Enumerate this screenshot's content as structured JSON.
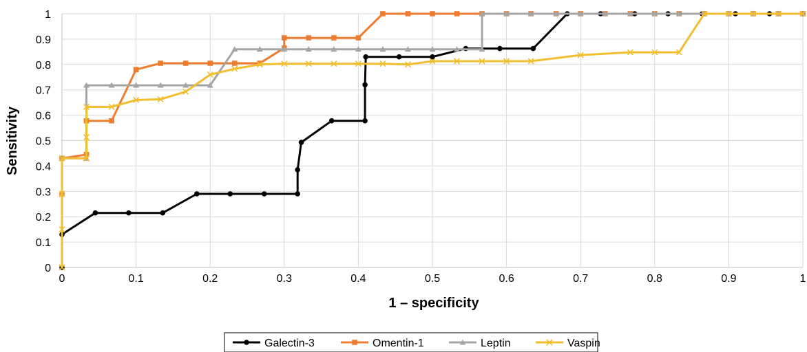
{
  "chart_data": {
    "type": "line",
    "title": "",
    "xlabel": "1 – specificity",
    "ylabel": "Sensitivity",
    "xlim": [
      0,
      1
    ],
    "ylim": [
      0,
      1
    ],
    "x_ticks": [
      "0",
      "0.1",
      "0.2",
      "0.3",
      "0.4",
      "0.5",
      "0.6",
      "0.7",
      "0.8",
      "0.9",
      "1"
    ],
    "y_ticks": [
      "0",
      "0.1",
      "0.2",
      "0.3",
      "0.4",
      "0.5",
      "0.6",
      "0.7",
      "0.8",
      "0.9",
      "1"
    ],
    "grid": true,
    "legend_position": "bottom",
    "series": [
      {
        "name": "Galectin-3",
        "color": "#000000",
        "marker": "circle",
        "points": [
          [
            0,
            0
          ],
          [
            0,
            0.13
          ],
          [
            0.045,
            0.215
          ],
          [
            0.09,
            0.215
          ],
          [
            0.136,
            0.215
          ],
          [
            0.182,
            0.29
          ],
          [
            0.227,
            0.29
          ],
          [
            0.273,
            0.29
          ],
          [
            0.318,
            0.29
          ],
          [
            0.318,
            0.385
          ],
          [
            0.323,
            0.493
          ],
          [
            0.364,
            0.578
          ],
          [
            0.409,
            0.578
          ],
          [
            0.409,
            0.72
          ],
          [
            0.41,
            0.83
          ],
          [
            0.455,
            0.83
          ],
          [
            0.5,
            0.83
          ],
          [
            0.545,
            0.863
          ],
          [
            0.591,
            0.863
          ],
          [
            0.636,
            0.863
          ],
          [
            0.682,
            1
          ],
          [
            0.727,
            1
          ],
          [
            0.773,
            1
          ],
          [
            0.818,
            1
          ],
          [
            0.864,
            1
          ],
          [
            0.909,
            1
          ],
          [
            0.955,
            1
          ],
          [
            1,
            1
          ]
        ]
      },
      {
        "name": "Omentin-1",
        "color": "#ED7D31",
        "marker": "square",
        "points": [
          [
            0,
            0.29
          ],
          [
            0,
            0.43
          ],
          [
            0.033,
            0.445
          ],
          [
            0.033,
            0.578
          ],
          [
            0.067,
            0.578
          ],
          [
            0.1,
            0.78
          ],
          [
            0.133,
            0.805
          ],
          [
            0.167,
            0.805
          ],
          [
            0.2,
            0.805
          ],
          [
            0.233,
            0.805
          ],
          [
            0.267,
            0.805
          ],
          [
            0.3,
            0.865
          ],
          [
            0.3,
            0.905
          ],
          [
            0.333,
            0.905
          ],
          [
            0.367,
            0.905
          ],
          [
            0.4,
            0.905
          ],
          [
            0.433,
            1
          ],
          [
            0.467,
            1
          ],
          [
            0.5,
            1
          ],
          [
            0.533,
            1
          ],
          [
            0.567,
            1
          ],
          [
            0.6,
            1
          ],
          [
            0.633,
            1
          ],
          [
            0.667,
            1
          ],
          [
            0.7,
            1
          ],
          [
            0.733,
            1
          ],
          [
            0.767,
            1
          ],
          [
            0.8,
            1
          ],
          [
            0.833,
            1
          ],
          [
            0.867,
            1
          ],
          [
            0.9,
            1
          ],
          [
            0.933,
            1
          ],
          [
            0.967,
            1
          ],
          [
            1,
            1
          ]
        ]
      },
      {
        "name": "Leptin",
        "color": "#A5A5A5",
        "marker": "triangle",
        "points": [
          [
            0,
            0.43
          ],
          [
            0.033,
            0.43
          ],
          [
            0.033,
            0.718
          ],
          [
            0.067,
            0.718
          ],
          [
            0.1,
            0.718
          ],
          [
            0.133,
            0.718
          ],
          [
            0.167,
            0.718
          ],
          [
            0.2,
            0.718
          ],
          [
            0.233,
            0.86
          ],
          [
            0.267,
            0.86
          ],
          [
            0.3,
            0.86
          ],
          [
            0.333,
            0.86
          ],
          [
            0.367,
            0.86
          ],
          [
            0.4,
            0.86
          ],
          [
            0.433,
            0.86
          ],
          [
            0.467,
            0.86
          ],
          [
            0.5,
            0.86
          ],
          [
            0.533,
            0.86
          ],
          [
            0.567,
            0.86
          ],
          [
            0.567,
            1
          ],
          [
            0.6,
            1
          ],
          [
            0.633,
            1
          ],
          [
            0.667,
            1
          ],
          [
            0.7,
            1
          ],
          [
            0.733,
            1
          ],
          [
            0.767,
            1
          ],
          [
            0.8,
            1
          ],
          [
            0.833,
            1
          ],
          [
            0.867,
            1
          ],
          [
            0.9,
            1
          ],
          [
            0.933,
            1
          ],
          [
            0.967,
            1
          ],
          [
            1,
            1
          ]
        ]
      },
      {
        "name": "Vaspin",
        "color": "#F0BE2E",
        "marker": "x",
        "points": [
          [
            0,
            0
          ],
          [
            0,
            0.15
          ],
          [
            0,
            0.29
          ],
          [
            0,
            0.43
          ],
          [
            0.033,
            0.43
          ],
          [
            0.033,
            0.513
          ],
          [
            0.033,
            0.633
          ],
          [
            0.067,
            0.633
          ],
          [
            0.1,
            0.66
          ],
          [
            0.133,
            0.663
          ],
          [
            0.167,
            0.693
          ],
          [
            0.2,
            0.76
          ],
          [
            0.233,
            0.783
          ],
          [
            0.267,
            0.8
          ],
          [
            0.3,
            0.803
          ],
          [
            0.333,
            0.803
          ],
          [
            0.367,
            0.803
          ],
          [
            0.4,
            0.803
          ],
          [
            0.433,
            0.803
          ],
          [
            0.467,
            0.8
          ],
          [
            0.5,
            0.813
          ],
          [
            0.533,
            0.813
          ],
          [
            0.567,
            0.813
          ],
          [
            0.6,
            0.813
          ],
          [
            0.633,
            0.813
          ],
          [
            0.7,
            0.837
          ],
          [
            0.767,
            0.848
          ],
          [
            0.8,
            0.848
          ],
          [
            0.833,
            0.848
          ],
          [
            0.867,
            1
          ],
          [
            0.9,
            1
          ],
          [
            0.933,
            1
          ],
          [
            0.967,
            1
          ],
          [
            1,
            1
          ]
        ]
      }
    ]
  }
}
